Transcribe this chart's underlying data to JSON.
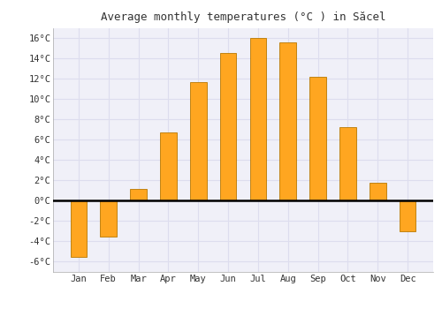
{
  "title": "Average monthly temperatures (°C ) in Săcel",
  "months": [
    "Jan",
    "Feb",
    "Mar",
    "Apr",
    "May",
    "Jun",
    "Jul",
    "Aug",
    "Sep",
    "Oct",
    "Nov",
    "Dec"
  ],
  "values": [
    -5.5,
    -3.5,
    1.2,
    6.7,
    11.7,
    14.5,
    16.0,
    15.6,
    12.2,
    7.2,
    1.8,
    -3.0
  ],
  "bar_color": "#FFA620",
  "bar_edge_color": "#B87800",
  "background_color": "#FFFFFF",
  "plot_bg_color": "#F0F0F8",
  "grid_color": "#DDDDEE",
  "ylim": [
    -7,
    17
  ],
  "yticks": [
    -6,
    -4,
    -2,
    0,
    2,
    4,
    6,
    8,
    10,
    12,
    14,
    16
  ],
  "title_fontsize": 9,
  "tick_fontsize": 7.5,
  "zero_line_color": "#000000",
  "bar_width": 0.55
}
